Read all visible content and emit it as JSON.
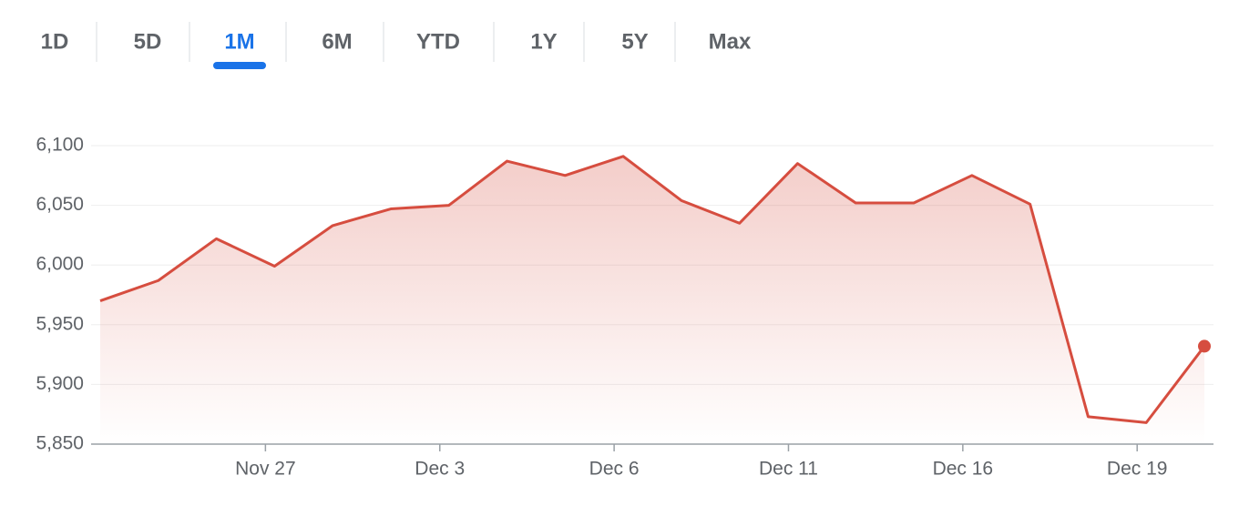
{
  "tabs": [
    "1D",
    "5D",
    "1M",
    "6M",
    "YTD",
    "1Y",
    "5Y",
    "Max"
  ],
  "active_tab": 2,
  "chart_data": {
    "type": "line",
    "categories": [
      null,
      null,
      null,
      "Nov 27",
      null,
      null,
      "Dec 3",
      null,
      null,
      "Dec 6",
      null,
      null,
      "Dec 11",
      null,
      null,
      "Dec 16",
      null,
      null,
      "Dec 19",
      null
    ],
    "series": [
      {
        "color": "#d64d3f",
        "values": [
          5970,
          5987,
          6022,
          5999,
          6033,
          6047,
          6050,
          6087,
          6075,
          6091,
          6054,
          6035,
          6085,
          6052,
          6052,
          6075,
          6051,
          5873,
          5868,
          5932
        ]
      }
    ],
    "ylim": [
      5850,
      6100
    ],
    "yticks": [
      {
        "value": 5850,
        "label": "5,850"
      },
      {
        "value": 5900,
        "label": "5,900"
      },
      {
        "value": 5950,
        "label": "5,950"
      },
      {
        "value": 6000,
        "label": "6,000"
      },
      {
        "value": 6050,
        "label": "6,050"
      },
      {
        "value": 6100,
        "label": "6,100"
      }
    ],
    "grid": true
  }
}
